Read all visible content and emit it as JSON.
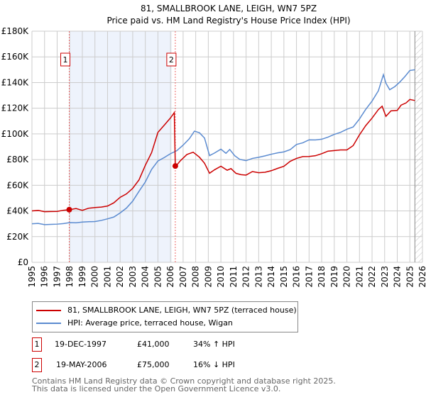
{
  "chart_data": {
    "type": "line",
    "title": "81, SMALLBROOK LANE, LEIGH, WN7 5PZ",
    "subtitle": "Price paid vs. HM Land Registry's House Price Index (HPI)",
    "xlim": [
      1995,
      2026
    ],
    "ylim": [
      0,
      180000
    ],
    "x_ticks": [
      "1995",
      "1996",
      "1997",
      "1998",
      "1999",
      "2000",
      "2001",
      "2002",
      "2003",
      "2004",
      "2005",
      "2006",
      "2007",
      "2008",
      "2009",
      "2010",
      "2011",
      "2012",
      "2013",
      "2014",
      "2015",
      "2016",
      "2017",
      "2018",
      "2019",
      "2020",
      "2021",
      "2022",
      "2023",
      "2024",
      "2025",
      "2026"
    ],
    "y_ticks": [
      {
        "v": 0,
        "label": "£0"
      },
      {
        "v": 20000,
        "label": "£20K"
      },
      {
        "v": 40000,
        "label": "£40K"
      },
      {
        "v": 60000,
        "label": "£60K"
      },
      {
        "v": 80000,
        "label": "£80K"
      },
      {
        "v": 100000,
        "label": "£100K"
      },
      {
        "v": 120000,
        "label": "£120K"
      },
      {
        "v": 140000,
        "label": "£140K"
      },
      {
        "v": 160000,
        "label": "£160K"
      },
      {
        "v": 180000,
        "label": "£180K"
      }
    ],
    "grid": true,
    "shaded_range": [
      1997.96,
      2006.1
    ],
    "forecast_hatch_from": 2025.4,
    "series": [
      {
        "name": "81, SMALLBROOK LANE, LEIGH, WN7 5PZ (terraced house)",
        "color": "#cc0000",
        "x": [
          1995,
          1995.5,
          1996,
          1996.5,
          1997,
          1997.5,
          1997.96,
          1998.5,
          1999,
          1999.5,
          2000,
          2000.5,
          2001,
          2001.5,
          2002,
          2002.5,
          2003,
          2003.5,
          2004,
          2004.5,
          2005,
          2005.5,
          2006,
          2006.3,
          2006.38,
          2006.8,
          2007.3,
          2007.8,
          2008.3,
          2008.7,
          2009.1,
          2009.5,
          2010,
          2010.5,
          2010.8,
          2011.2,
          2011.6,
          2012,
          2012.5,
          2013,
          2013.5,
          2014,
          2014.5,
          2015,
          2015.5,
          2016,
          2016.5,
          2017,
          2017.5,
          2018,
          2018.5,
          2019,
          2019.5,
          2020,
          2020.5,
          2021,
          2021.5,
          2022,
          2022.5,
          2022.8,
          2023.1,
          2023.5,
          2024,
          2024.3,
          2024.7,
          2025,
          2025.4
        ],
        "y": [
          40000,
          40000,
          39000,
          39500,
          40000,
          41000,
          41000,
          41500,
          40000,
          42000,
          43000,
          43500,
          44000,
          46000,
          50000,
          53000,
          58000,
          65000,
          76000,
          85000,
          100000,
          106000,
          113000,
          118000,
          75000,
          79000,
          83000,
          85000,
          82000,
          78000,
          70000,
          72000,
          74000,
          71000,
          73000,
          70000,
          69000,
          68000,
          70000,
          69000,
          70000,
          72000,
          74000,
          75000,
          78000,
          80000,
          82000,
          83000,
          84000,
          85000,
          86000,
          86000,
          87000,
          88000,
          92000,
          100000,
          106000,
          111000,
          118000,
          122000,
          115000,
          119000,
          118000,
          121000,
          123000,
          127000,
          126000
        ]
      },
      {
        "name": "HPI: Average price, terraced house, Wigan",
        "color": "#5b8bd0",
        "x": [
          1995,
          1995.5,
          1996,
          1996.5,
          1997,
          1997.5,
          1998,
          1998.5,
          1999,
          1999.5,
          2000,
          2000.5,
          2001,
          2001.5,
          2002,
          2002.5,
          2003,
          2003.5,
          2004,
          2004.5,
          2005,
          2005.5,
          2006,
          2006.5,
          2007,
          2007.5,
          2007.9,
          2008.3,
          2008.7,
          2009.1,
          2009.5,
          2010,
          2010.4,
          2010.7,
          2011.1,
          2011.5,
          2012,
          2012.5,
          2013,
          2013.5,
          2014,
          2014.5,
          2015,
          2015.5,
          2016,
          2016.5,
          2017,
          2017.5,
          2018,
          2018.5,
          2019,
          2019.5,
          2020,
          2020.5,
          2021,
          2021.5,
          2022,
          2022.5,
          2022.9,
          2023.1,
          2023.4,
          2023.8,
          2024.2,
          2024.6,
          2025,
          2025.4
        ],
        "y": [
          30000,
          30000,
          29000,
          29500,
          30000,
          30500,
          31000,
          30500,
          31000,
          31500,
          32000,
          33000,
          34000,
          35000,
          38000,
          42000,
          48000,
          56000,
          63000,
          72000,
          78000,
          81000,
          85000,
          88000,
          92000,
          96000,
          101000,
          100000,
          97000,
          84000,
          86000,
          88000,
          84000,
          87000,
          83000,
          81000,
          80000,
          81000,
          81000,
          82000,
          84000,
          86000,
          87000,
          88000,
          91000,
          92000,
          95000,
          96000,
          97000,
          98000,
          99000,
          100000,
          103000,
          106000,
          113000,
          120000,
          125000,
          132000,
          145000,
          140000,
          136000,
          138000,
          140000,
          143000,
          148000,
          150000
        ]
      }
    ],
    "sales": [
      {
        "label": "1",
        "date": "19-DEC-1997",
        "price": "£41,000",
        "hpi": "34% ↑ HPI",
        "x": 1997.96,
        "y": 41000
      },
      {
        "label": "2",
        "date": "19-MAY-2006",
        "price": "£75,000",
        "hpi": "16% ↓ HPI",
        "x": 2006.38,
        "y": 75000
      }
    ],
    "footer": [
      "Contains HM Land Registry data © Crown copyright and database right 2025.",
      "This data is licensed under the Open Government Licence v3.0."
    ]
  }
}
